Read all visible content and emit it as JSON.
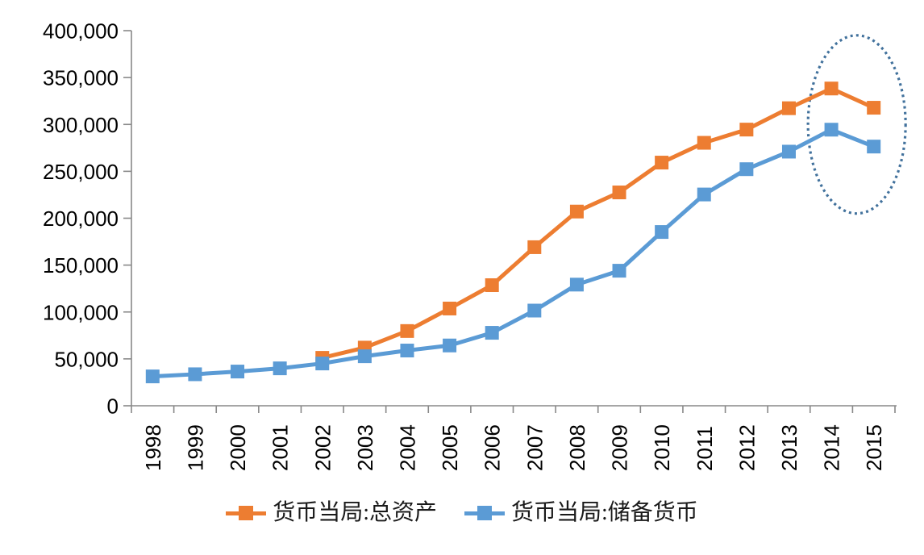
{
  "chart_data": {
    "type": "line",
    "title": "",
    "xlabel": "",
    "ylabel": "",
    "categories": [
      "1998",
      "1999",
      "2000",
      "2001",
      "2002",
      "2003",
      "2004",
      "2005",
      "2006",
      "2007",
      "2008",
      "2009",
      "2010",
      "2011",
      "2012",
      "2013",
      "2014",
      "2015"
    ],
    "series": [
      {
        "name": "货币当局:总资产",
        "color": "#ED7D31",
        "marker": "square",
        "values": [
          null,
          null,
          null,
          null,
          51100,
          62000,
          79700,
          103700,
          128600,
          169100,
          207100,
          227500,
          259300,
          280400,
          294500,
          317300,
          338300,
          317800
        ]
      },
      {
        "name": "货币当局:储备货币",
        "color": "#5B9BD5",
        "marker": "square",
        "values": [
          31300,
          33600,
          36500,
          39900,
          45100,
          52800,
          58900,
          64300,
          77800,
          101500,
          129200,
          144000,
          185300,
          225300,
          252300,
          271000,
          294400,
          276400
        ]
      }
    ],
    "ylim": [
      0,
      400000
    ],
    "ytick_interval": 50000,
    "ytick_labels": [
      "0",
      "50,000",
      "100,000",
      "150,000",
      "200,000",
      "250,000",
      "300,000",
      "350,000",
      "400,000"
    ],
    "grid": false,
    "legend_position": "bottom",
    "annotation": {
      "shape": "dotted-ellipse",
      "description": "dotted ellipse highlighting the 2014-2015 turning point of both series",
      "color": "#41719C",
      "x_center_year": 2014.6,
      "y_center_value": 300000,
      "x_radius_years": 1.15,
      "y_radius_value": 95000
    }
  },
  "style": {
    "axis_color": "#898989",
    "text_color": "#000000",
    "background": "#ffffff"
  }
}
